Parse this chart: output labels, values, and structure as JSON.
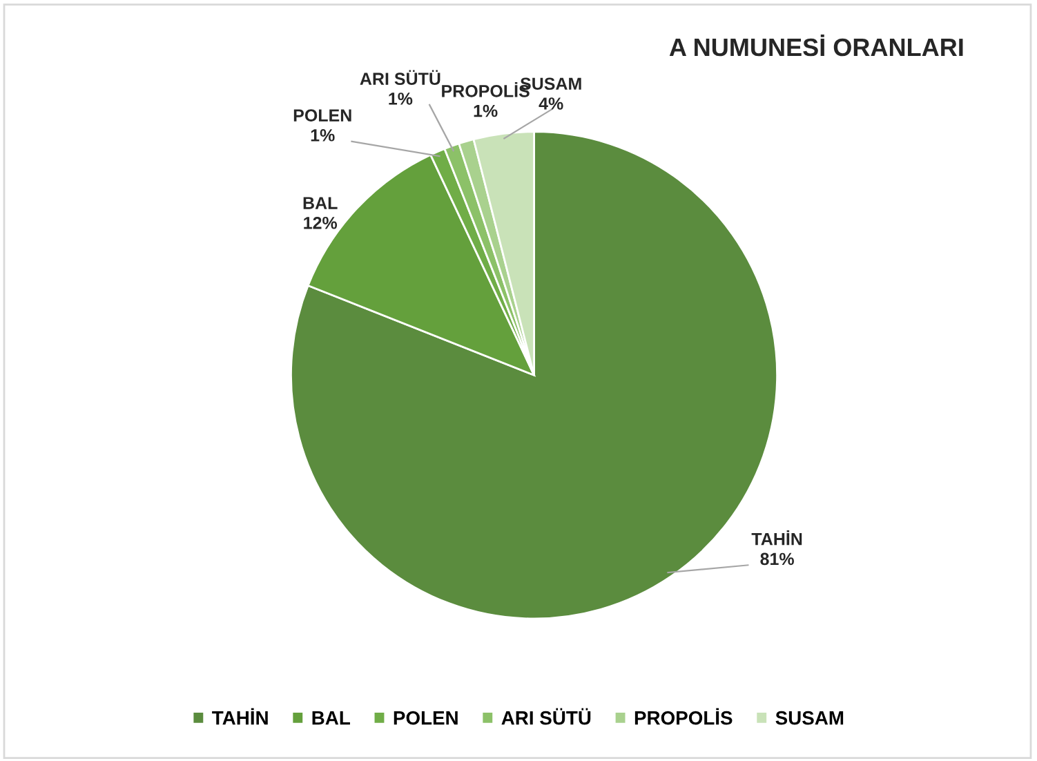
{
  "chart_data": {
    "type": "pie",
    "title": "A NUMUNESİ ORANLARI",
    "categories": [
      "TAHİN",
      "BAL",
      "POLEN",
      "ARI SÜTÜ",
      "PROPOLİS",
      "SUSAM"
    ],
    "values": [
      81,
      12,
      1,
      1,
      1,
      4
    ],
    "value_labels": [
      "81%",
      "12%",
      "1%",
      "1%",
      "1%",
      "4%"
    ],
    "colors": [
      "#5b8c3e",
      "#64a03c",
      "#70ad47",
      "#8cc168",
      "#a9d18e",
      "#c9e2b8"
    ],
    "legend": "bottom"
  }
}
